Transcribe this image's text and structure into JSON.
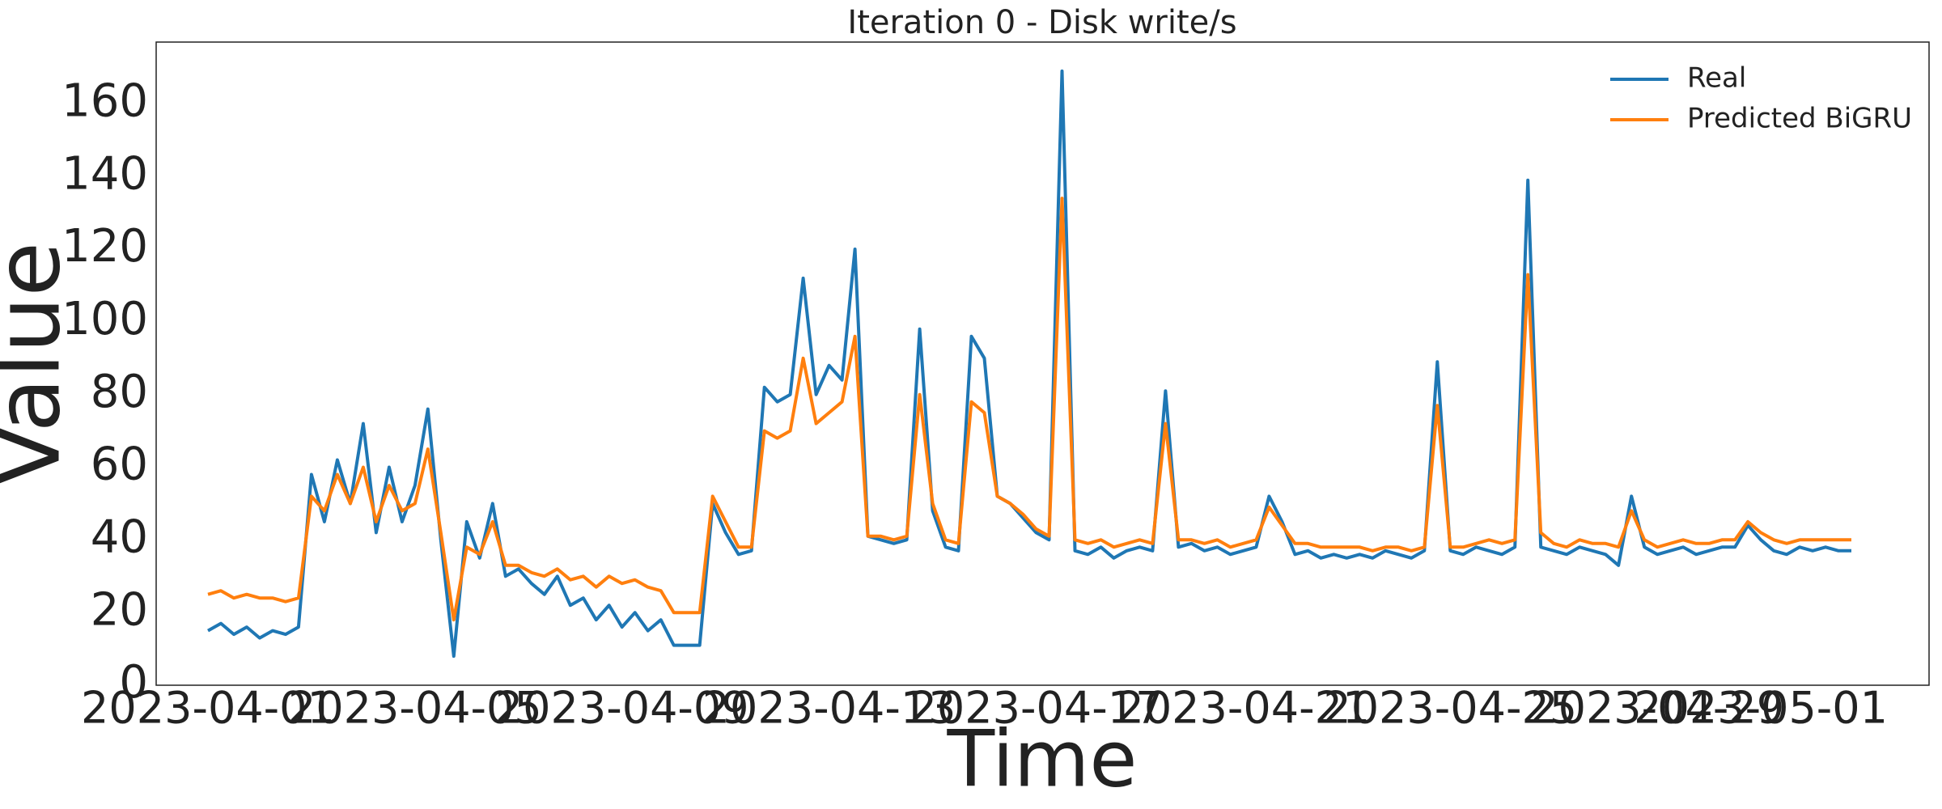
{
  "chart_data": {
    "type": "line",
    "title": "Iteration 0 - Disk write/s",
    "x_label": "Time",
    "y_label": "Value",
    "x": [
      "2023-04-01T00:00",
      "2023-04-01T06:00",
      "2023-04-01T12:00",
      "2023-04-01T18:00",
      "2023-04-02T00:00",
      "2023-04-02T06:00",
      "2023-04-02T12:00",
      "2023-04-02T18:00",
      "2023-04-03T00:00",
      "2023-04-03T06:00",
      "2023-04-03T12:00",
      "2023-04-03T18:00",
      "2023-04-04T00:00",
      "2023-04-04T06:00",
      "2023-04-04T12:00",
      "2023-04-04T18:00",
      "2023-04-05T00:00",
      "2023-04-05T06:00",
      "2023-04-05T12:00",
      "2023-04-05T18:00",
      "2023-04-06T00:00",
      "2023-04-06T06:00",
      "2023-04-06T12:00",
      "2023-04-06T18:00",
      "2023-04-07T00:00",
      "2023-04-07T06:00",
      "2023-04-07T12:00",
      "2023-04-07T18:00",
      "2023-04-08T00:00",
      "2023-04-08T06:00",
      "2023-04-08T12:00",
      "2023-04-08T18:00",
      "2023-04-09T00:00",
      "2023-04-09T06:00",
      "2023-04-09T12:00",
      "2023-04-09T18:00",
      "2023-04-10T00:00",
      "2023-04-10T06:00",
      "2023-04-10T12:00",
      "2023-04-10T18:00",
      "2023-04-11T00:00",
      "2023-04-11T06:00",
      "2023-04-11T12:00",
      "2023-04-11T18:00",
      "2023-04-12T00:00",
      "2023-04-12T06:00",
      "2023-04-12T12:00",
      "2023-04-12T18:00",
      "2023-04-13T00:00",
      "2023-04-13T06:00",
      "2023-04-13T12:00",
      "2023-04-13T18:00",
      "2023-04-14T00:00",
      "2023-04-14T06:00",
      "2023-04-14T12:00",
      "2023-04-14T18:00",
      "2023-04-15T00:00",
      "2023-04-15T06:00",
      "2023-04-15T12:00",
      "2023-04-15T18:00",
      "2023-04-16T00:00",
      "2023-04-16T06:00",
      "2023-04-16T12:00",
      "2023-04-16T18:00",
      "2023-04-17T00:00",
      "2023-04-17T06:00",
      "2023-04-17T12:00",
      "2023-04-17T18:00",
      "2023-04-18T00:00",
      "2023-04-18T06:00",
      "2023-04-18T12:00",
      "2023-04-18T18:00",
      "2023-04-19T00:00",
      "2023-04-19T06:00",
      "2023-04-19T12:00",
      "2023-04-19T18:00",
      "2023-04-20T00:00",
      "2023-04-20T06:00",
      "2023-04-20T12:00",
      "2023-04-20T18:00",
      "2023-04-21T00:00",
      "2023-04-21T06:00",
      "2023-04-21T12:00",
      "2023-04-21T18:00",
      "2023-04-22T00:00",
      "2023-04-22T06:00",
      "2023-04-22T12:00",
      "2023-04-22T18:00",
      "2023-04-23T00:00",
      "2023-04-23T06:00",
      "2023-04-23T12:00",
      "2023-04-23T18:00",
      "2023-04-24T00:00",
      "2023-04-24T06:00",
      "2023-04-24T12:00",
      "2023-04-24T18:00",
      "2023-04-25T00:00",
      "2023-04-25T06:00",
      "2023-04-25T12:00",
      "2023-04-25T18:00",
      "2023-04-26T00:00",
      "2023-04-26T06:00",
      "2023-04-26T12:00",
      "2023-04-26T18:00",
      "2023-04-27T00:00",
      "2023-04-27T06:00",
      "2023-04-27T12:00",
      "2023-04-27T18:00",
      "2023-04-28T00:00",
      "2023-04-28T06:00",
      "2023-04-28T12:00",
      "2023-04-28T18:00",
      "2023-04-29T00:00",
      "2023-04-29T06:00",
      "2023-04-29T12:00",
      "2023-04-29T18:00",
      "2023-04-30T00:00",
      "2023-04-30T06:00",
      "2023-04-30T12:00",
      "2023-04-30T18:00",
      "2023-05-01T00:00",
      "2023-05-01T06:00",
      "2023-05-01T12:00",
      "2023-05-01T18:00",
      "2023-05-02T00:00",
      "2023-05-02T06:00",
      "2023-05-02T12:00",
      "2023-05-02T18:00"
    ],
    "series": [
      {
        "name": "Real",
        "color": "#1f77b4",
        "values": [
          15,
          17,
          14,
          16,
          13,
          15,
          14,
          16,
          58,
          45,
          62,
          50,
          72,
          42,
          60,
          45,
          55,
          76,
          40,
          8,
          45,
          35,
          50,
          30,
          32,
          28,
          25,
          30,
          22,
          24,
          18,
          22,
          16,
          20,
          15,
          18,
          11,
          11,
          11,
          50,
          42,
          36,
          37,
          82,
          78,
          80,
          112,
          80,
          88,
          84,
          120,
          41,
          40,
          39,
          40,
          98,
          48,
          38,
          37,
          96,
          90,
          52,
          50,
          46,
          42,
          40,
          169,
          37,
          36,
          38,
          35,
          37,
          38,
          37,
          81,
          38,
          39,
          37,
          38,
          36,
          37,
          38,
          52,
          45,
          36,
          37,
          35,
          36,
          35,
          36,
          35,
          37,
          36,
          35,
          37,
          89,
          37,
          36,
          38,
          37,
          36,
          38,
          139,
          38,
          37,
          36,
          38,
          37,
          36,
          33,
          52,
          38,
          36,
          37,
          38,
          36,
          37,
          38,
          38,
          44,
          40,
          37,
          36,
          38,
          37,
          38,
          37,
          37
        ]
      },
      {
        "name": "Predicted BiGRU",
        "color": "#ff7f0e",
        "values": [
          25,
          26,
          24,
          25,
          24,
          24,
          23,
          24,
          52,
          48,
          58,
          50,
          60,
          45,
          55,
          48,
          50,
          65,
          42,
          18,
          38,
          36,
          45,
          33,
          33,
          31,
          30,
          32,
          29,
          30,
          27,
          30,
          28,
          29,
          27,
          26,
          20,
          20,
          20,
          52,
          45,
          38,
          38,
          70,
          68,
          70,
          90,
          72,
          75,
          78,
          96,
          41,
          41,
          40,
          41,
          80,
          50,
          40,
          39,
          78,
          75,
          52,
          50,
          47,
          43,
          41,
          134,
          40,
          39,
          40,
          38,
          39,
          40,
          39,
          72,
          40,
          40,
          39,
          40,
          38,
          39,
          40,
          49,
          44,
          39,
          39,
          38,
          38,
          38,
          38,
          37,
          38,
          38,
          37,
          38,
          77,
          38,
          38,
          39,
          40,
          39,
          40,
          113,
          42,
          39,
          38,
          40,
          39,
          39,
          38,
          48,
          40,
          38,
          39,
          40,
          39,
          39,
          40,
          40,
          45,
          42,
          40,
          39,
          40,
          40,
          40,
          40,
          40
        ]
      }
    ],
    "xlim": [
      "2023-03-31T00:00",
      "2023-05-04T06:00"
    ],
    "xticks": [
      "2023-04-01",
      "2023-04-05",
      "2023-04-09",
      "2023-04-13",
      "2023-04-17",
      "2023-04-21",
      "2023-04-25",
      "2023-04-29",
      "2023-05-01"
    ],
    "ylim": [
      0,
      177
    ],
    "yticks": [
      0,
      20,
      40,
      60,
      80,
      100,
      120,
      140,
      160
    ],
    "grid": false,
    "legend": "upper right"
  }
}
